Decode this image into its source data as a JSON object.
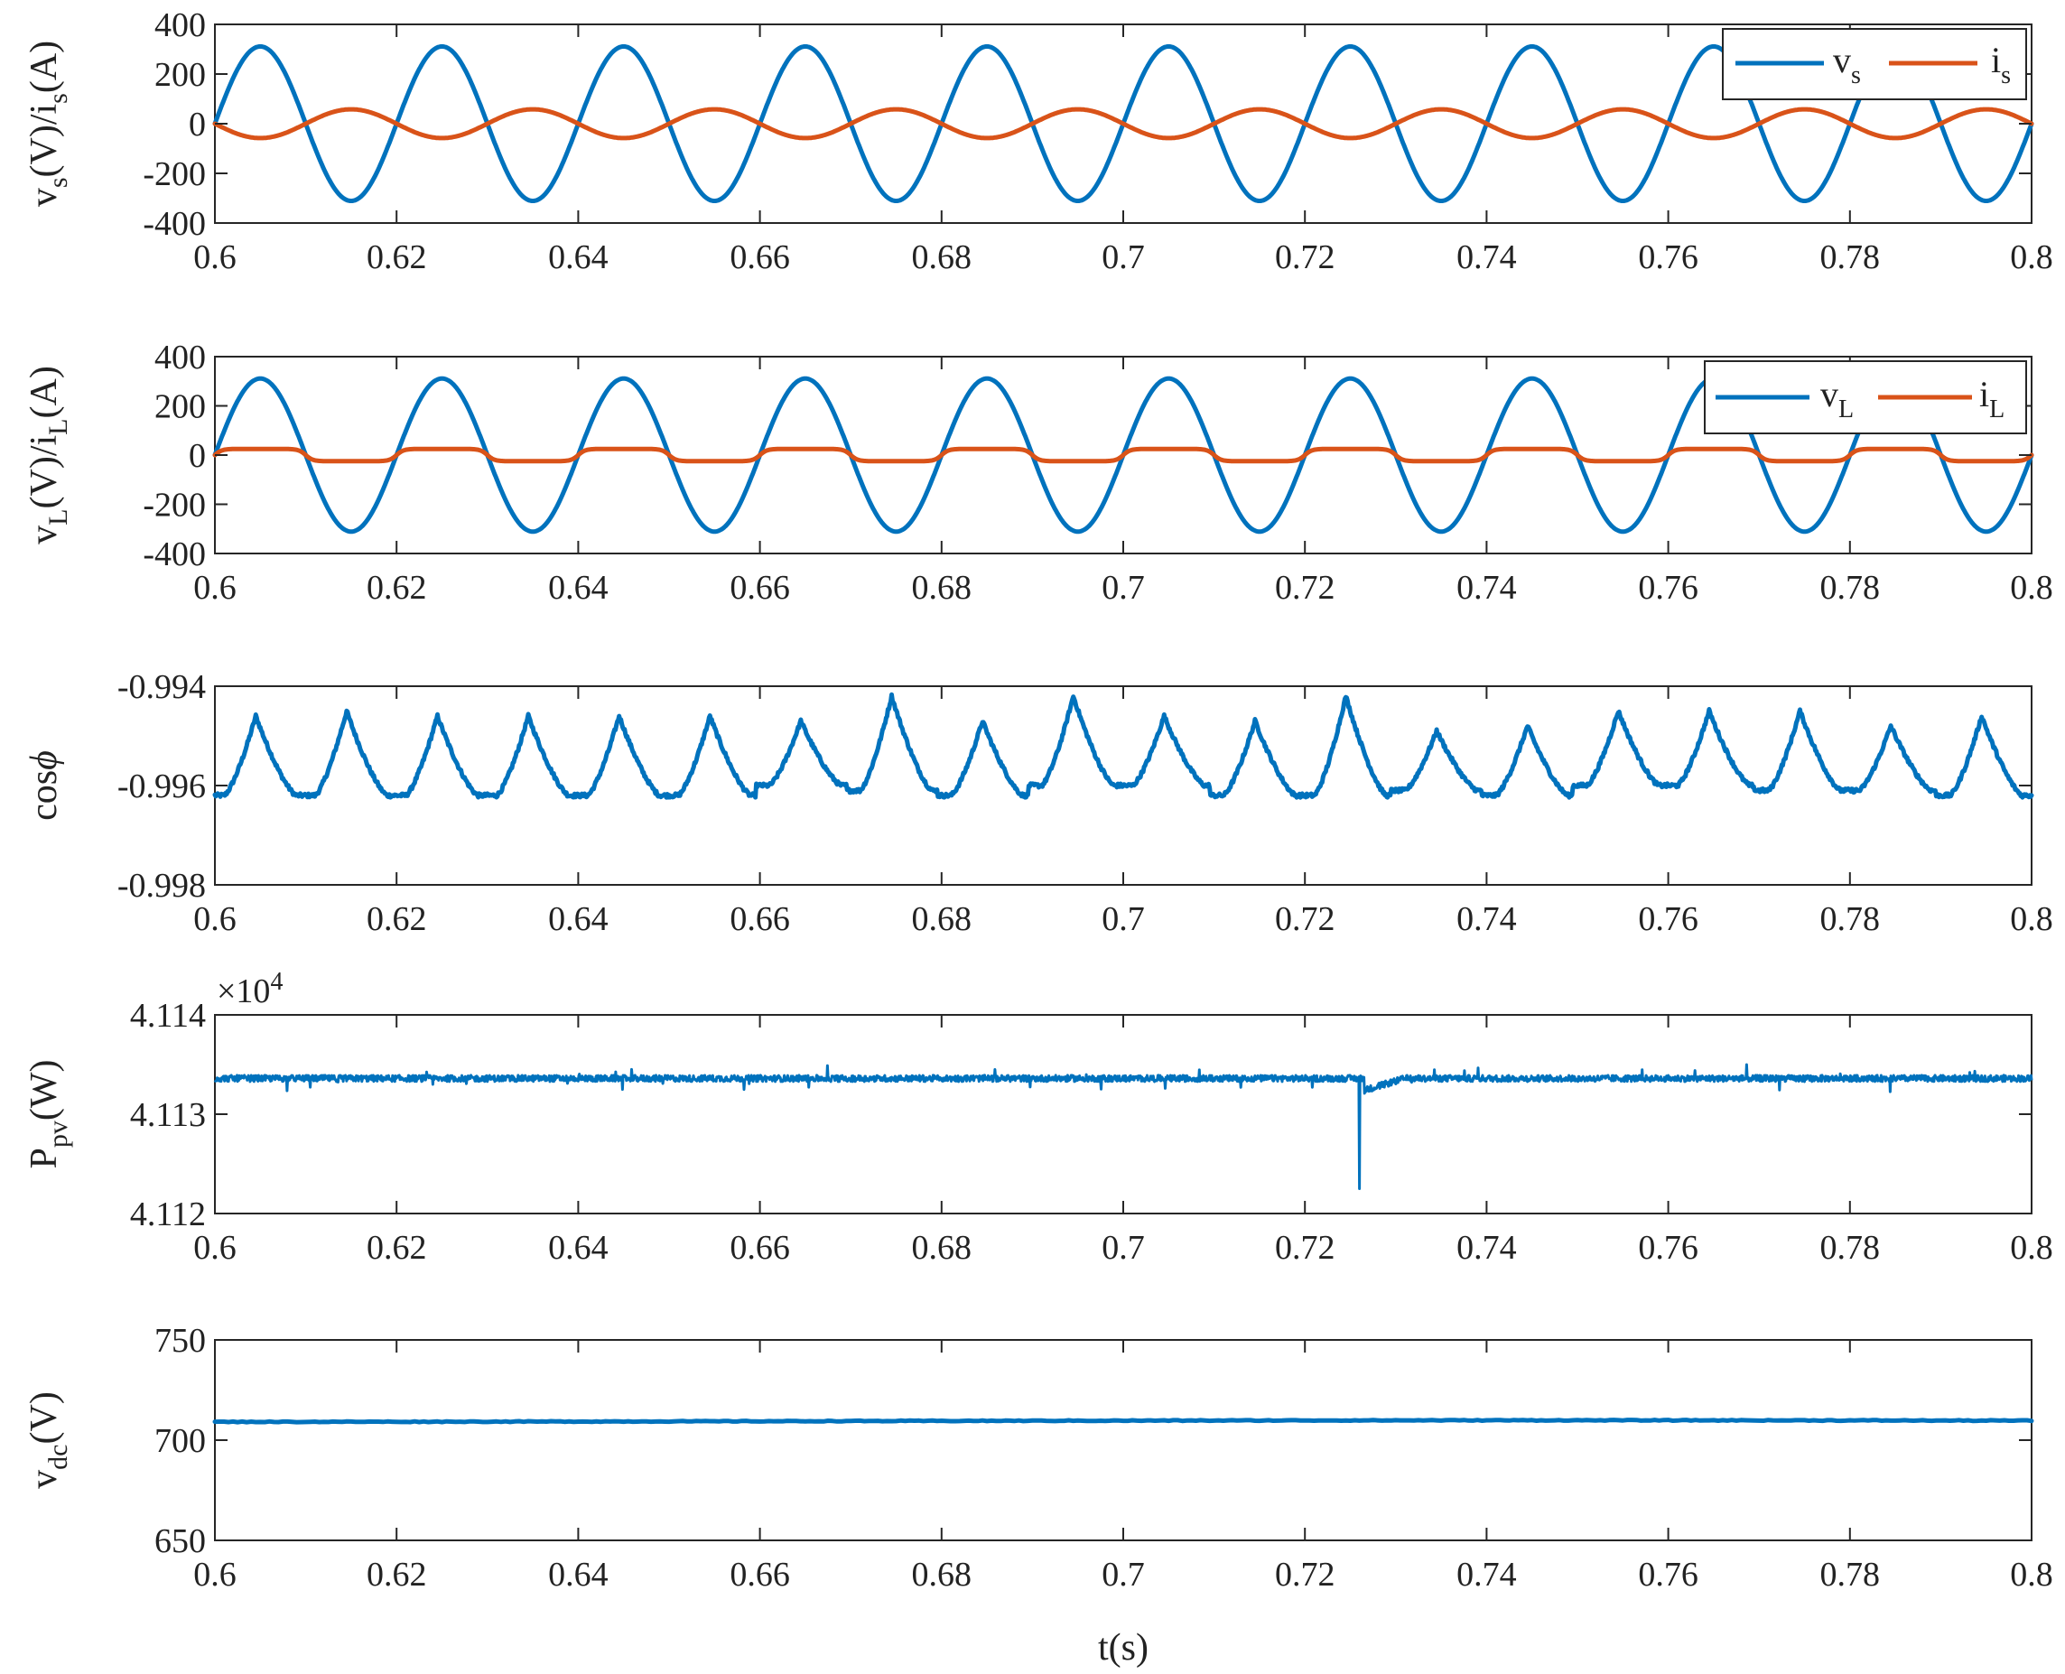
{
  "colors": {
    "blue": "#0072BD",
    "orange": "#D95319",
    "axis": "#262626"
  },
  "x_axis": {
    "label": "t(s)",
    "range": [
      0.6,
      0.8
    ],
    "ticks": [
      "0.6",
      "0.62",
      "0.64",
      "0.66",
      "0.68",
      "0.7",
      "0.72",
      "0.74",
      "0.76",
      "0.78",
      "0.8"
    ]
  },
  "chart_data": [
    {
      "type": "line",
      "ylabel_main": "v",
      "ylabel_sub1": "s",
      "ylabel_mid": "(V)/i",
      "ylabel_sub2": "s",
      "ylabel_tail": "(A)",
      "ylim": [
        -400,
        400
      ],
      "yticks": [
        "400",
        "200",
        "0",
        "-200",
        "-400"
      ],
      "legend": {
        "placement": "top-right",
        "labels": [
          {
            "main": "v",
            "sub": "s"
          },
          {
            "main": "i",
            "sub": "s"
          }
        ]
      },
      "series": [
        {
          "name": "vs",
          "color": "blue",
          "kind": "sine",
          "amplitude": 311,
          "frequency_hz": 50,
          "phase": 0
        },
        {
          "name": "is",
          "color": "orange",
          "kind": "sine",
          "amplitude": 58,
          "frequency_hz": 50,
          "phase": 3.14159
        }
      ]
    },
    {
      "type": "line",
      "ylabel_main": "v",
      "ylabel_sub1": "L",
      "ylabel_mid": "(V)/i",
      "ylabel_sub2": "L",
      "ylabel_tail": "(A)",
      "ylim": [
        -400,
        400
      ],
      "yticks": [
        "400",
        "200",
        "0",
        "-200",
        "-400"
      ],
      "legend": {
        "placement": "top-right",
        "labels": [
          {
            "main": "v",
            "sub": "L"
          },
          {
            "main": "i",
            "sub": "L"
          }
        ]
      },
      "series": [
        {
          "name": "vL",
          "color": "blue",
          "kind": "sine",
          "amplitude": 311,
          "frequency_hz": 50,
          "phase": 0
        },
        {
          "name": "iL",
          "color": "orange",
          "kind": "square-ish",
          "amplitude": 25,
          "frequency_hz": 50,
          "phase": 0
        }
      ]
    },
    {
      "type": "line",
      "ylabel_main": "cos",
      "ylabel_symbol": "ϕ",
      "ylim": [
        -0.998,
        -0.994
      ],
      "yticks": [
        "-0.994",
        "-0.996",
        "-0.998"
      ],
      "series": [
        {
          "name": "cosphi",
          "color": "blue",
          "kind": "peaks",
          "peak_times": [
            0.6045,
            0.6145,
            0.6245,
            0.6345,
            0.6445,
            0.6545,
            0.6645,
            0.6745,
            0.6845,
            0.6945,
            0.7045,
            0.7145,
            0.7245,
            0.7345,
            0.7445,
            0.7545,
            0.7645,
            0.7745,
            0.7845,
            0.7945
          ],
          "peak_values": [
            -0.9946,
            -0.9945,
            -0.9946,
            -0.9946,
            -0.9946,
            -0.9946,
            -0.9947,
            -0.9942,
            -0.9947,
            -0.9942,
            -0.9946,
            -0.9947,
            -0.9942,
            -0.9949,
            -0.9948,
            -0.9945,
            -0.9945,
            -0.9945,
            -0.9948,
            -0.9946
          ],
          "trough_values": [
            -0.9962,
            -0.9962,
            -0.9962,
            -0.9962,
            -0.9962,
            -0.9962,
            -0.996,
            -0.9961,
            -0.9962,
            -0.996,
            -0.996,
            -0.9962,
            -0.9962,
            -0.9961,
            -0.9962,
            -0.996,
            -0.996,
            -0.9961,
            -0.9961,
            -0.9962
          ]
        }
      ]
    },
    {
      "type": "line",
      "ylabel_main": "P",
      "ylabel_sub1": "pv",
      "ylabel_tail": "(W)",
      "ylim": [
        4.112,
        4.114
      ],
      "yticks": [
        "4.114",
        "4.113",
        "4.112"
      ],
      "multiplier_base": "×10",
      "multiplier_exp": "4",
      "series": [
        {
          "name": "Ppv",
          "color": "blue",
          "kind": "noisy-flat",
          "mean": 4.11336,
          "noise": 4e-05,
          "dip_time": 0.726,
          "dip_value": 4.11225
        }
      ]
    },
    {
      "type": "line",
      "ylabel_main": "v",
      "ylabel_sub1": "dc",
      "ylabel_tail": "(V)",
      "ylim": [
        650,
        750
      ],
      "yticks": [
        "750",
        "700",
        "650"
      ],
      "series": [
        {
          "name": "vdc",
          "color": "blue",
          "kind": "flat",
          "mean": 709.5
        }
      ]
    }
  ]
}
